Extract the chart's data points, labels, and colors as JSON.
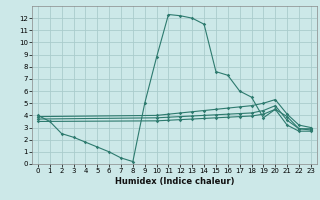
{
  "xlabel": "Humidex (Indice chaleur)",
  "ylabel": "",
  "bg_color": "#cce8e8",
  "grid_color": "#aacccc",
  "line_color": "#2d7a6e",
  "xlim": [
    -0.5,
    23.5
  ],
  "ylim": [
    0,
    13
  ],
  "xticks": [
    0,
    1,
    2,
    3,
    4,
    5,
    6,
    7,
    8,
    9,
    10,
    11,
    12,
    13,
    14,
    15,
    16,
    17,
    18,
    19,
    20,
    21,
    22,
    23
  ],
  "yticks": [
    0,
    1,
    2,
    3,
    4,
    5,
    6,
    7,
    8,
    9,
    10,
    11,
    12
  ],
  "lines": [
    {
      "x": [
        0,
        1,
        2,
        3,
        4,
        5,
        6,
        7,
        8,
        9,
        10,
        11,
        12,
        13,
        14,
        15,
        16,
        17,
        18,
        19,
        20,
        21,
        22,
        23
      ],
      "y": [
        4.0,
        3.5,
        2.5,
        2.2,
        1.8,
        1.4,
        1.0,
        0.5,
        0.2,
        5.0,
        8.8,
        12.3,
        12.2,
        12.0,
        11.5,
        7.6,
        7.3,
        6.0,
        5.5,
        3.8,
        4.5,
        3.9,
        2.9,
        2.9
      ]
    },
    {
      "x": [
        0,
        10,
        11,
        12,
        13,
        14,
        15,
        16,
        17,
        18,
        19,
        20,
        21,
        22,
        23
      ],
      "y": [
        3.9,
        4.0,
        4.1,
        4.2,
        4.3,
        4.4,
        4.5,
        4.6,
        4.7,
        4.8,
        5.0,
        5.3,
        4.1,
        3.2,
        3.0
      ]
    },
    {
      "x": [
        0,
        10,
        11,
        12,
        13,
        14,
        15,
        16,
        17,
        18,
        19,
        20,
        21,
        22,
        23
      ],
      "y": [
        3.7,
        3.8,
        3.85,
        3.9,
        3.95,
        4.0,
        4.05,
        4.1,
        4.15,
        4.2,
        4.4,
        4.8,
        3.6,
        2.9,
        2.8
      ]
    },
    {
      "x": [
        0,
        10,
        11,
        12,
        13,
        14,
        15,
        16,
        17,
        18,
        19,
        20,
        21,
        22,
        23
      ],
      "y": [
        3.5,
        3.55,
        3.6,
        3.65,
        3.7,
        3.75,
        3.8,
        3.85,
        3.9,
        3.95,
        4.1,
        4.5,
        3.2,
        2.7,
        2.7
      ]
    }
  ]
}
